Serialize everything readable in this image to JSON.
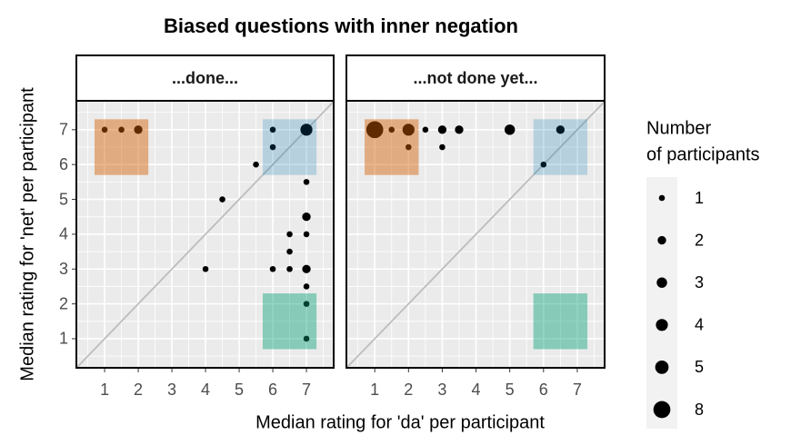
{
  "title": "Biased questions with inner negation",
  "x_label": "Median rating for 'da' per participant",
  "y_label": "Median rating for 'net' per participant",
  "legend": {
    "title_lines": [
      "Number",
      "of participants"
    ],
    "values": [
      1,
      2,
      3,
      4,
      5,
      8
    ]
  },
  "chart_data": [
    {
      "type": "scatter",
      "title": "...done...",
      "x": [
        1,
        1.5,
        2,
        6,
        6,
        5.5,
        7,
        4.5,
        7,
        7,
        6.5,
        7,
        6.5,
        4,
        6,
        6.5,
        7,
        7,
        7,
        7
      ],
      "y": [
        7,
        7,
        7,
        7,
        6.5,
        6,
        7,
        5,
        5.5,
        4.5,
        4,
        4,
        3.5,
        3,
        3,
        3,
        3,
        2.5,
        2,
        1
      ],
      "sizes": [
        1,
        1,
        2,
        1,
        1,
        1,
        4,
        1,
        1,
        2,
        1,
        1,
        1,
        1,
        1,
        1,
        2,
        1,
        1,
        1
      ],
      "color": "#000000",
      "xlim": [
        0.16,
        7.81
      ],
      "ylim": [
        0.165,
        7.83
      ],
      "xticks": [
        1,
        2,
        3,
        4,
        5,
        6,
        7
      ],
      "yticks": [
        1,
        2,
        3,
        4,
        5,
        6,
        7
      ],
      "grid": true,
      "diagonal": true,
      "regions": [
        {
          "xlim": [
            0.7,
            2.3
          ],
          "ylim": [
            5.7,
            7.3
          ],
          "color": "#D55E00",
          "alpha": 0.45
        },
        {
          "xlim": [
            5.7,
            7.3
          ],
          "ylim": [
            5.7,
            7.3
          ],
          "color": "#0072B2",
          "alpha": 0.22
        },
        {
          "xlim": [
            5.7,
            7.3
          ],
          "ylim": [
            0.7,
            2.3
          ],
          "color": "#009E73",
          "alpha": 0.42
        }
      ]
    },
    {
      "type": "scatter",
      "title": "...not done yet...",
      "x": [
        1,
        1.5,
        2,
        2.5,
        3,
        3.5,
        5,
        6.5,
        2,
        3,
        6
      ],
      "y": [
        7,
        7,
        7,
        7,
        7,
        7,
        7,
        7,
        6.5,
        6.5,
        6
      ],
      "sizes": [
        8,
        1,
        4,
        1,
        2,
        2,
        3,
        2,
        1,
        1,
        1
      ],
      "color": "#000000",
      "xlim": [
        0.16,
        7.81
      ],
      "ylim": [
        0.165,
        7.83
      ],
      "xticks": [
        1,
        2,
        3,
        4,
        5,
        6,
        7
      ],
      "yticks": [
        1,
        2,
        3,
        4,
        5,
        6,
        7
      ],
      "grid": true,
      "diagonal": true,
      "regions": [
        {
          "xlim": [
            0.7,
            2.3
          ],
          "ylim": [
            5.7,
            7.3
          ],
          "color": "#D55E00",
          "alpha": 0.45
        },
        {
          "xlim": [
            5.7,
            7.3
          ],
          "ylim": [
            5.7,
            7.3
          ],
          "color": "#0072B2",
          "alpha": 0.22
        },
        {
          "xlim": [
            5.7,
            7.3
          ],
          "ylim": [
            0.7,
            2.3
          ],
          "color": "#009E73",
          "alpha": 0.42
        }
      ]
    }
  ]
}
